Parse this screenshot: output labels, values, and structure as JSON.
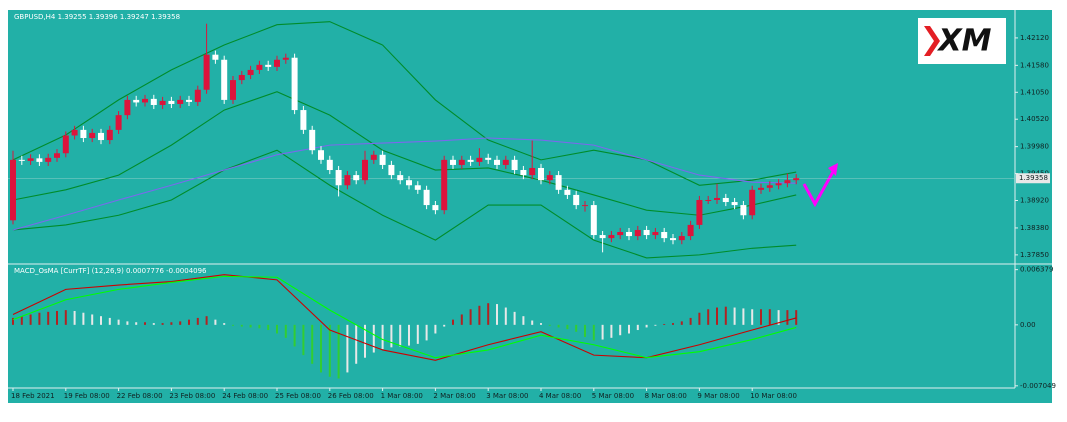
{
  "logo": "XM",
  "chart_data": [
    {
      "type": "candlestick",
      "title": "GBPUSD,H4  1.39255 1.39396 1.39247 1.39358",
      "up_color": "#dc143c",
      "down_color": "#ffffff",
      "ylim": [
        1.3769,
        1.4263
      ],
      "yticks": [
        {
          "value": 1.4212,
          "label": "1.42120"
        },
        {
          "value": 1.4158,
          "label": "1.41580"
        },
        {
          "value": 1.4105,
          "label": "1.41050"
        },
        {
          "value": 1.4052,
          "label": "1.40520"
        },
        {
          "value": 1.3998,
          "label": "1.39980"
        },
        {
          "value": 1.3945,
          "label": "1.39450"
        },
        {
          "value": 1.3892,
          "label": "1.38920"
        },
        {
          "value": 1.3838,
          "label": "1.38380"
        },
        {
          "value": 1.3785,
          "label": "1.37850"
        }
      ],
      "current": {
        "value": 1.39358,
        "label": "1.39358"
      },
      "x_labels": [
        {
          "at": 0,
          "label": "18 Feb 2021"
        },
        {
          "at": 6,
          "label": "19 Feb 08:00"
        },
        {
          "at": 12,
          "label": "22 Feb 08:00"
        },
        {
          "at": 18,
          "label": "23 Feb 08:00"
        },
        {
          "at": 24,
          "label": "24 Feb 08:00"
        },
        {
          "at": 30,
          "label": "25 Feb 08:00"
        },
        {
          "at": 36,
          "label": "26 Feb 08:00"
        },
        {
          "at": 42,
          "label": "1 Mar 08:00"
        },
        {
          "at": 48,
          "label": "2 Mar 08:00"
        },
        {
          "at": 54,
          "label": "3 Mar 08:00"
        },
        {
          "at": 60,
          "label": "4 Mar 08:00"
        },
        {
          "at": 66,
          "label": "5 Mar 08:00"
        },
        {
          "at": 72,
          "label": "8 Mar 08:00"
        },
        {
          "at": 78,
          "label": "9 Mar 08:00"
        },
        {
          "at": 84,
          "label": "10 Mar 08:00"
        }
      ],
      "ohlc": [
        [
          1.3853,
          1.399,
          1.3845,
          1.3972
        ],
        [
          1.3972,
          1.398,
          1.3962,
          1.397
        ],
        [
          1.397,
          1.3983,
          1.3962,
          1.3975
        ],
        [
          1.3975,
          1.3983,
          1.396,
          1.3968
        ],
        [
          1.3968,
          1.3984,
          1.396,
          1.3976
        ],
        [
          1.3976,
          1.3993,
          1.3968,
          1.3985
        ],
        [
          1.3985,
          1.4028,
          1.3977,
          1.402
        ],
        [
          1.402,
          1.4039,
          1.4012,
          1.4031
        ],
        [
          1.4031,
          1.4039,
          1.4007,
          1.4015
        ],
        [
          1.4015,
          1.4033,
          1.4007,
          1.4025
        ],
        [
          1.4025,
          1.4033,
          1.4003,
          1.4011
        ],
        [
          1.4011,
          1.4039,
          1.4003,
          1.4031
        ],
        [
          1.4031,
          1.4068,
          1.4023,
          1.406
        ],
        [
          1.406,
          1.4098,
          1.4052,
          1.409
        ],
        [
          1.409,
          1.4098,
          1.4077,
          1.4085
        ],
        [
          1.4085,
          1.41,
          1.4077,
          1.4092
        ],
        [
          1.4092,
          1.41,
          1.4072,
          1.408
        ],
        [
          1.408,
          1.4096,
          1.4072,
          1.4088
        ],
        [
          1.4088,
          1.4096,
          1.4074,
          1.4082
        ],
        [
          1.4082,
          1.4098,
          1.4074,
          1.409
        ],
        [
          1.409,
          1.4098,
          1.4078,
          1.4086
        ],
        [
          1.4086,
          1.4118,
          1.4078,
          1.411
        ],
        [
          1.411,
          1.424,
          1.4102,
          1.4179
        ],
        [
          1.4179,
          1.4187,
          1.4161,
          1.4169
        ],
        [
          1.4169,
          1.4177,
          1.4082,
          1.409
        ],
        [
          1.409,
          1.4137,
          1.4082,
          1.4129
        ],
        [
          1.4129,
          1.4147,
          1.4121,
          1.4139
        ],
        [
          1.4139,
          1.4157,
          1.4131,
          1.4149
        ],
        [
          1.4149,
          1.4167,
          1.4141,
          1.4159
        ],
        [
          1.4159,
          1.4167,
          1.4147,
          1.4155
        ],
        [
          1.4155,
          1.4177,
          1.4147,
          1.4169
        ],
        [
          1.4169,
          1.4181,
          1.4161,
          1.4173
        ],
        [
          1.4173,
          1.4181,
          1.4062,
          1.407
        ],
        [
          1.407,
          1.4078,
          1.4023,
          1.4031
        ],
        [
          1.4031,
          1.4039,
          1.3983,
          1.3991
        ],
        [
          1.3991,
          1.3999,
          1.3964,
          1.3972
        ],
        [
          1.3972,
          1.398,
          1.3944,
          1.3952
        ],
        [
          1.3952,
          1.396,
          1.39,
          1.3922
        ],
        [
          1.3922,
          1.395,
          1.3914,
          1.3942
        ],
        [
          1.3942,
          1.395,
          1.3924,
          1.3932
        ],
        [
          1.3932,
          1.399,
          1.3924,
          1.3972
        ],
        [
          1.3972,
          1.399,
          1.3964,
          1.3982
        ],
        [
          1.3982,
          1.399,
          1.3954,
          1.3962
        ],
        [
          1.3962,
          1.397,
          1.3934,
          1.3942
        ],
        [
          1.3942,
          1.395,
          1.3924,
          1.3932
        ],
        [
          1.3932,
          1.394,
          1.3914,
          1.3922
        ],
        [
          1.3922,
          1.393,
          1.3905,
          1.3913
        ],
        [
          1.3913,
          1.3921,
          1.3875,
          1.3883
        ],
        [
          1.3883,
          1.3891,
          1.3865,
          1.3873
        ],
        [
          1.3873,
          1.398,
          1.3865,
          1.3972
        ],
        [
          1.3972,
          1.398,
          1.3954,
          1.3962
        ],
        [
          1.3962,
          1.398,
          1.3954,
          1.3972
        ],
        [
          1.3972,
          1.398,
          1.396,
          1.3968
        ],
        [
          1.3968,
          1.3995,
          1.396,
          1.3976
        ],
        [
          1.3976,
          1.3984,
          1.3964,
          1.3972
        ],
        [
          1.3972,
          1.398,
          1.3954,
          1.3962
        ],
        [
          1.3962,
          1.398,
          1.3954,
          1.3972
        ],
        [
          1.3972,
          1.398,
          1.3944,
          1.3952
        ],
        [
          1.3952,
          1.396,
          1.3934,
          1.3942
        ],
        [
          1.3942,
          1.401,
          1.3934,
          1.3956
        ],
        [
          1.3956,
          1.3964,
          1.3924,
          1.3932
        ],
        [
          1.3932,
          1.395,
          1.3924,
          1.3942
        ],
        [
          1.3942,
          1.395,
          1.3905,
          1.3913
        ],
        [
          1.3913,
          1.3921,
          1.3895,
          1.3903
        ],
        [
          1.3903,
          1.3911,
          1.3875,
          1.3883
        ],
        [
          1.3883,
          1.3891,
          1.387,
          1.3883
        ],
        [
          1.3883,
          1.3891,
          1.3816,
          1.3824
        ],
        [
          1.3824,
          1.3832,
          1.379,
          1.3818
        ],
        [
          1.3818,
          1.3832,
          1.381,
          1.3824
        ],
        [
          1.3824,
          1.3838,
          1.3816,
          1.383
        ],
        [
          1.383,
          1.3838,
          1.3814,
          1.3822
        ],
        [
          1.3822,
          1.3842,
          1.3814,
          1.3834
        ],
        [
          1.3834,
          1.3842,
          1.3816,
          1.3824
        ],
        [
          1.3824,
          1.3838,
          1.3816,
          1.383
        ],
        [
          1.383,
          1.3838,
          1.381,
          1.3818
        ],
        [
          1.3818,
          1.3826,
          1.3806,
          1.3814
        ],
        [
          1.3814,
          1.383,
          1.3806,
          1.3822
        ],
        [
          1.3822,
          1.3852,
          1.3814,
          1.3844
        ],
        [
          1.3844,
          1.3901,
          1.3836,
          1.3893
        ],
        [
          1.3893,
          1.3901,
          1.3885,
          1.3893
        ],
        [
          1.3893,
          1.3925,
          1.3885,
          1.3897
        ],
        [
          1.3897,
          1.3905,
          1.3881,
          1.3889
        ],
        [
          1.3889,
          1.3897,
          1.3875,
          1.3883
        ],
        [
          1.3883,
          1.3891,
          1.3855,
          1.3863
        ],
        [
          1.3863,
          1.3921,
          1.3855,
          1.3913
        ],
        [
          1.3913,
          1.3925,
          1.3905,
          1.3917
        ],
        [
          1.3917,
          1.393,
          1.3909,
          1.3922
        ],
        [
          1.3922,
          1.3934,
          1.3914,
          1.3926
        ],
        [
          1.3926,
          1.3945,
          1.3918,
          1.3932
        ],
        [
          1.3932,
          1.3944,
          1.3924,
          1.3936
        ]
      ],
      "x": [
        0,
        6,
        12,
        18,
        24,
        30,
        36,
        42,
        48,
        54,
        60,
        66,
        72,
        78,
        84,
        89
      ],
      "series": [
        {
          "color": "#008c2a",
          "values": [
            1.3972,
            1.4021,
            1.409,
            1.4149,
            1.4198,
            1.4238,
            1.4244,
            1.4198,
            1.409,
            1.4011,
            1.3972,
            1.3991,
            1.3972,
            1.3922,
            1.3932,
            1.3948
          ]
        },
        {
          "color": "#008c2a",
          "values": [
            1.3893,
            1.3913,
            1.3942,
            1.4001,
            1.407,
            1.4106,
            1.406,
            1.3991,
            1.3952,
            1.3956,
            1.3932,
            1.3903,
            1.3873,
            1.3863,
            1.3883,
            1.3903
          ]
        },
        {
          "color": "#008c2a",
          "values": [
            1.3834,
            1.3844,
            1.3863,
            1.3893,
            1.3952,
            1.3991,
            1.3922,
            1.3863,
            1.3814,
            1.3883,
            1.3883,
            1.3814,
            1.3779,
            1.3785,
            1.3798,
            1.3804
          ]
        },
        {
          "color": "#7b68ee",
          "values": [
            1.3834,
            1.3863,
            1.3893,
            1.3922,
            1.3952,
            1.3982,
            1.4001,
            1.4005,
            1.4009,
            1.4015,
            1.4011,
            1.4001,
            1.3972,
            1.3942,
            1.3928,
            1.3926
          ]
        }
      ]
    },
    {
      "type": "macd",
      "title": "MACD_OsMA [CurrTF] (12,26,9) 0.0007776 -0.0004096",
      "ylim": [
        -0.0073,
        0.0068
      ],
      "yticks": [
        0.006379,
        {
          "value": 0,
          "label": "0.00"
        },
        -0.007049
      ],
      "hist_colors": {
        "up": "#b22222",
        "flat": "#e8e8e8",
        "down": "#32cd32"
      },
      "histogram": [
        0.0008,
        0.001,
        0.0012,
        0.0014,
        0.0015,
        0.0016,
        0.0017,
        0.0016,
        0.0014,
        0.0012,
        0.001,
        0.0008,
        0.0006,
        0.0004,
        0.0003,
        0.0003,
        0.0002,
        0.0002,
        0.0003,
        0.0004,
        0.0006,
        0.0008,
        0.001,
        0.0006,
        0.0002,
        -0.0001,
        -0.0002,
        -0.0003,
        -0.0004,
        -0.0006,
        -0.001,
        -0.0015,
        -0.0025,
        -0.0035,
        -0.0045,
        -0.0055,
        -0.006,
        -0.0062,
        -0.0055,
        -0.0045,
        -0.0038,
        -0.0032,
        -0.0028,
        -0.0026,
        -0.0025,
        -0.0024,
        -0.0022,
        -0.0018,
        -0.001,
        -0.0002,
        0.0006,
        0.0012,
        0.0018,
        0.0022,
        0.0025,
        0.0024,
        0.002,
        0.0015,
        0.001,
        0.0005,
        0.0002,
        -0.0001,
        -0.0003,
        -0.0005,
        -0.0008,
        -0.0014,
        -0.0018,
        -0.0017,
        -0.0015,
        -0.0012,
        -0.001,
        -0.0006,
        -0.0003,
        -0.0001,
        0.0001,
        0.0002,
        0.0004,
        0.0008,
        0.0014,
        0.0018,
        0.002,
        0.0021,
        0.002,
        0.0019,
        0.0018,
        0.0018,
        0.0018,
        0.0017,
        0.0017,
        0.0017
      ],
      "x": [
        0,
        6,
        12,
        18,
        24,
        30,
        36,
        42,
        48,
        54,
        60,
        66,
        72,
        78,
        84,
        89
      ],
      "series": [
        {
          "color": "#cc0000",
          "values": [
            0.0012,
            0.0041,
            0.0046,
            0.005,
            0.0058,
            0.0052,
            -0.0006,
            -0.0029,
            -0.0041,
            -0.0023,
            -0.0008,
            -0.0035,
            -0.0038,
            -0.0023,
            -0.0006,
            0.0008
          ]
        },
        {
          "color": "#00ff00",
          "values": [
            0.0006,
            0.0029,
            0.0041,
            0.0049,
            0.0056,
            0.0055,
            0.0017,
            -0.0017,
            -0.0038,
            -0.0029,
            -0.0012,
            -0.0023,
            -0.0038,
            -0.0031,
            -0.0017,
            -0.0003
          ]
        }
      ]
    }
  ]
}
